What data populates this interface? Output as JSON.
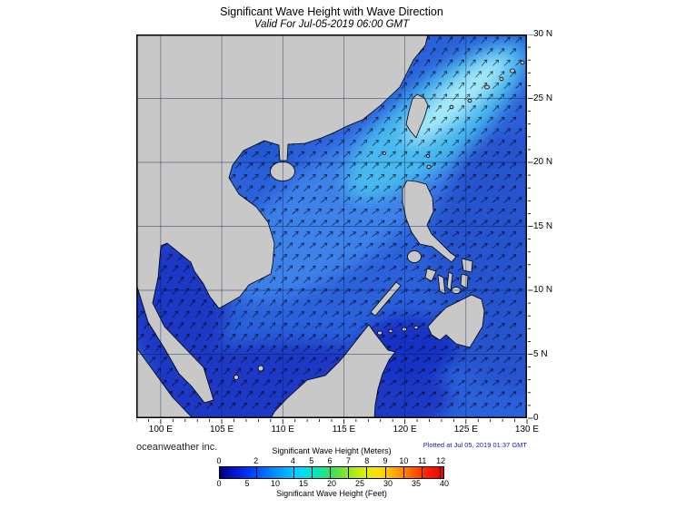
{
  "title": "Significant Wave Height with Wave Direction",
  "subtitle": "Valid For Jul-05-2019 06:00 GMT",
  "credit": "oceanweather inc.",
  "plotted": "Plotted at Jul 05, 2019 01:37 GMT",
  "axes": {
    "lon_ticks": [
      "100 E",
      "105 E",
      "110 E",
      "115 E",
      "120 E",
      "125 E",
      "130 E"
    ],
    "lat_ticks": [
      "30 N",
      "25 N",
      "20 N",
      "15 N",
      "10 N",
      "5 N",
      "0"
    ]
  },
  "colorbar": {
    "title_meters": "Significant Wave Height (Meters)",
    "title_feet": "Significant Wave Height (Feet)",
    "meters_labels": [
      0,
      2,
      4,
      5,
      6,
      7,
      8,
      9,
      10,
      11,
      12
    ],
    "feet_labels": [
      0,
      5,
      10,
      15,
      20,
      25,
      30,
      35,
      40
    ],
    "colors": [
      "#000080",
      "#0018d0",
      "#0040ff",
      "#0078ff",
      "#00aaff",
      "#00d8ff",
      "#00e8c0",
      "#38e060",
      "#90e820",
      "#d8f000",
      "#ffe000",
      "#ffa800",
      "#ff6000",
      "#ff2000",
      "#e80000"
    ]
  },
  "map": {
    "lon_range": [
      "100 E",
      "130 E"
    ],
    "lat_range": [
      "0",
      "30 N"
    ],
    "ocean_base_color": "#2b61da",
    "land_color": "#c8c8c8",
    "high_wave_region": "northeast of Taiwan / Luzon Strait"
  }
}
